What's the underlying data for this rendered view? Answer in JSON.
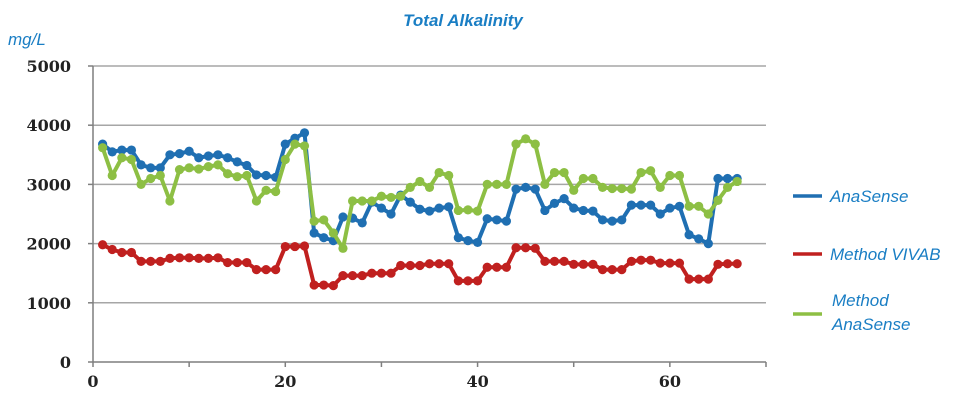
{
  "colors": {
    "title": "#1a7ec4",
    "legend_text": "#1a7ec4",
    "grid": "#a6a6a6",
    "axis": "#7f7f7f"
  },
  "chart_data": {
    "type": "line",
    "title": "Total Alkalinity",
    "ylabel": "mg/L",
    "xlabel": "",
    "xlim": [
      0,
      70
    ],
    "ylim": [
      0,
      5000
    ],
    "xticks": [
      0,
      20,
      40,
      60
    ],
    "yticks": [
      0,
      1000,
      2000,
      3000,
      4000,
      5000
    ],
    "xtick_labels": [
      "0",
      "20",
      "40",
      "60"
    ],
    "ytick_labels": [
      "0",
      "1000",
      "2000",
      "3000",
      "4000",
      "5000"
    ],
    "grid": "horizontal",
    "legend_position": "right",
    "x": [
      1,
      2,
      3,
      4,
      5,
      6,
      7,
      8,
      9,
      10,
      11,
      12,
      13,
      14,
      15,
      16,
      17,
      18,
      19,
      20,
      21,
      22,
      23,
      24,
      25,
      26,
      27,
      28,
      29,
      30,
      31,
      32,
      33,
      34,
      35,
      36,
      37,
      38,
      39,
      40,
      41,
      42,
      43,
      44,
      45,
      46,
      47,
      48,
      49,
      50,
      51,
      52,
      53,
      54,
      55,
      56,
      57,
      58,
      59,
      60,
      61,
      62,
      63,
      64,
      65,
      66,
      67
    ],
    "series": [
      {
        "name": "AnaSense",
        "color": "#1f6fb2",
        "values": [
          3680,
          3550,
          3580,
          3580,
          3330,
          3280,
          3280,
          3500,
          3520,
          3560,
          3450,
          3480,
          3500,
          3450,
          3380,
          3320,
          3160,
          3150,
          3120,
          3680,
          3780,
          3870,
          2180,
          2100,
          2050,
          2450,
          2430,
          2350,
          2700,
          2600,
          2500,
          2820,
          2700,
          2580,
          2550,
          2600,
          2620,
          2100,
          2050,
          2020,
          2420,
          2400,
          2380,
          2920,
          2950,
          2920,
          2560,
          2680,
          2760,
          2600,
          2560,
          2550,
          2400,
          2380,
          2400,
          2650,
          2650,
          2650,
          2500,
          2600,
          2630,
          2150,
          2080,
          2000,
          3100,
          3100,
          3100
        ]
      },
      {
        "name": "Method VIVAB",
        "color": "#c0201f",
        "values": [
          1980,
          1900,
          1850,
          1850,
          1700,
          1700,
          1700,
          1750,
          1760,
          1760,
          1750,
          1750,
          1760,
          1680,
          1680,
          1680,
          1560,
          1560,
          1560,
          1950,
          1950,
          1960,
          1300,
          1300,
          1290,
          1460,
          1460,
          1460,
          1500,
          1500,
          1500,
          1630,
          1630,
          1630,
          1660,
          1660,
          1660,
          1370,
          1370,
          1370,
          1600,
          1600,
          1600,
          1930,
          1930,
          1920,
          1700,
          1700,
          1700,
          1650,
          1650,
          1650,
          1560,
          1560,
          1560,
          1700,
          1720,
          1720,
          1670,
          1670,
          1670,
          1400,
          1400,
          1400,
          1650,
          1660,
          1660
        ]
      },
      {
        "name": "Method AnaSense",
        "color": "#8dbf44",
        "values": [
          3620,
          3150,
          3450,
          3420,
          3000,
          3100,
          3150,
          2720,
          3250,
          3280,
          3260,
          3300,
          3330,
          3180,
          3130,
          3150,
          2720,
          2900,
          2880,
          3420,
          3680,
          3650,
          2380,
          2400,
          2180,
          1920,
          2720,
          2720,
          2720,
          2800,
          2780,
          2800,
          2950,
          3050,
          2950,
          3200,
          3150,
          2560,
          2570,
          2550,
          3000,
          3000,
          3000,
          3680,
          3770,
          3680,
          3000,
          3200,
          3200,
          2900,
          3100,
          3100,
          2950,
          2930,
          2930,
          2920,
          3200,
          3230,
          2950,
          3150,
          3150,
          2630,
          2630,
          2500,
          2730,
          2950,
          3050
        ]
      }
    ]
  }
}
